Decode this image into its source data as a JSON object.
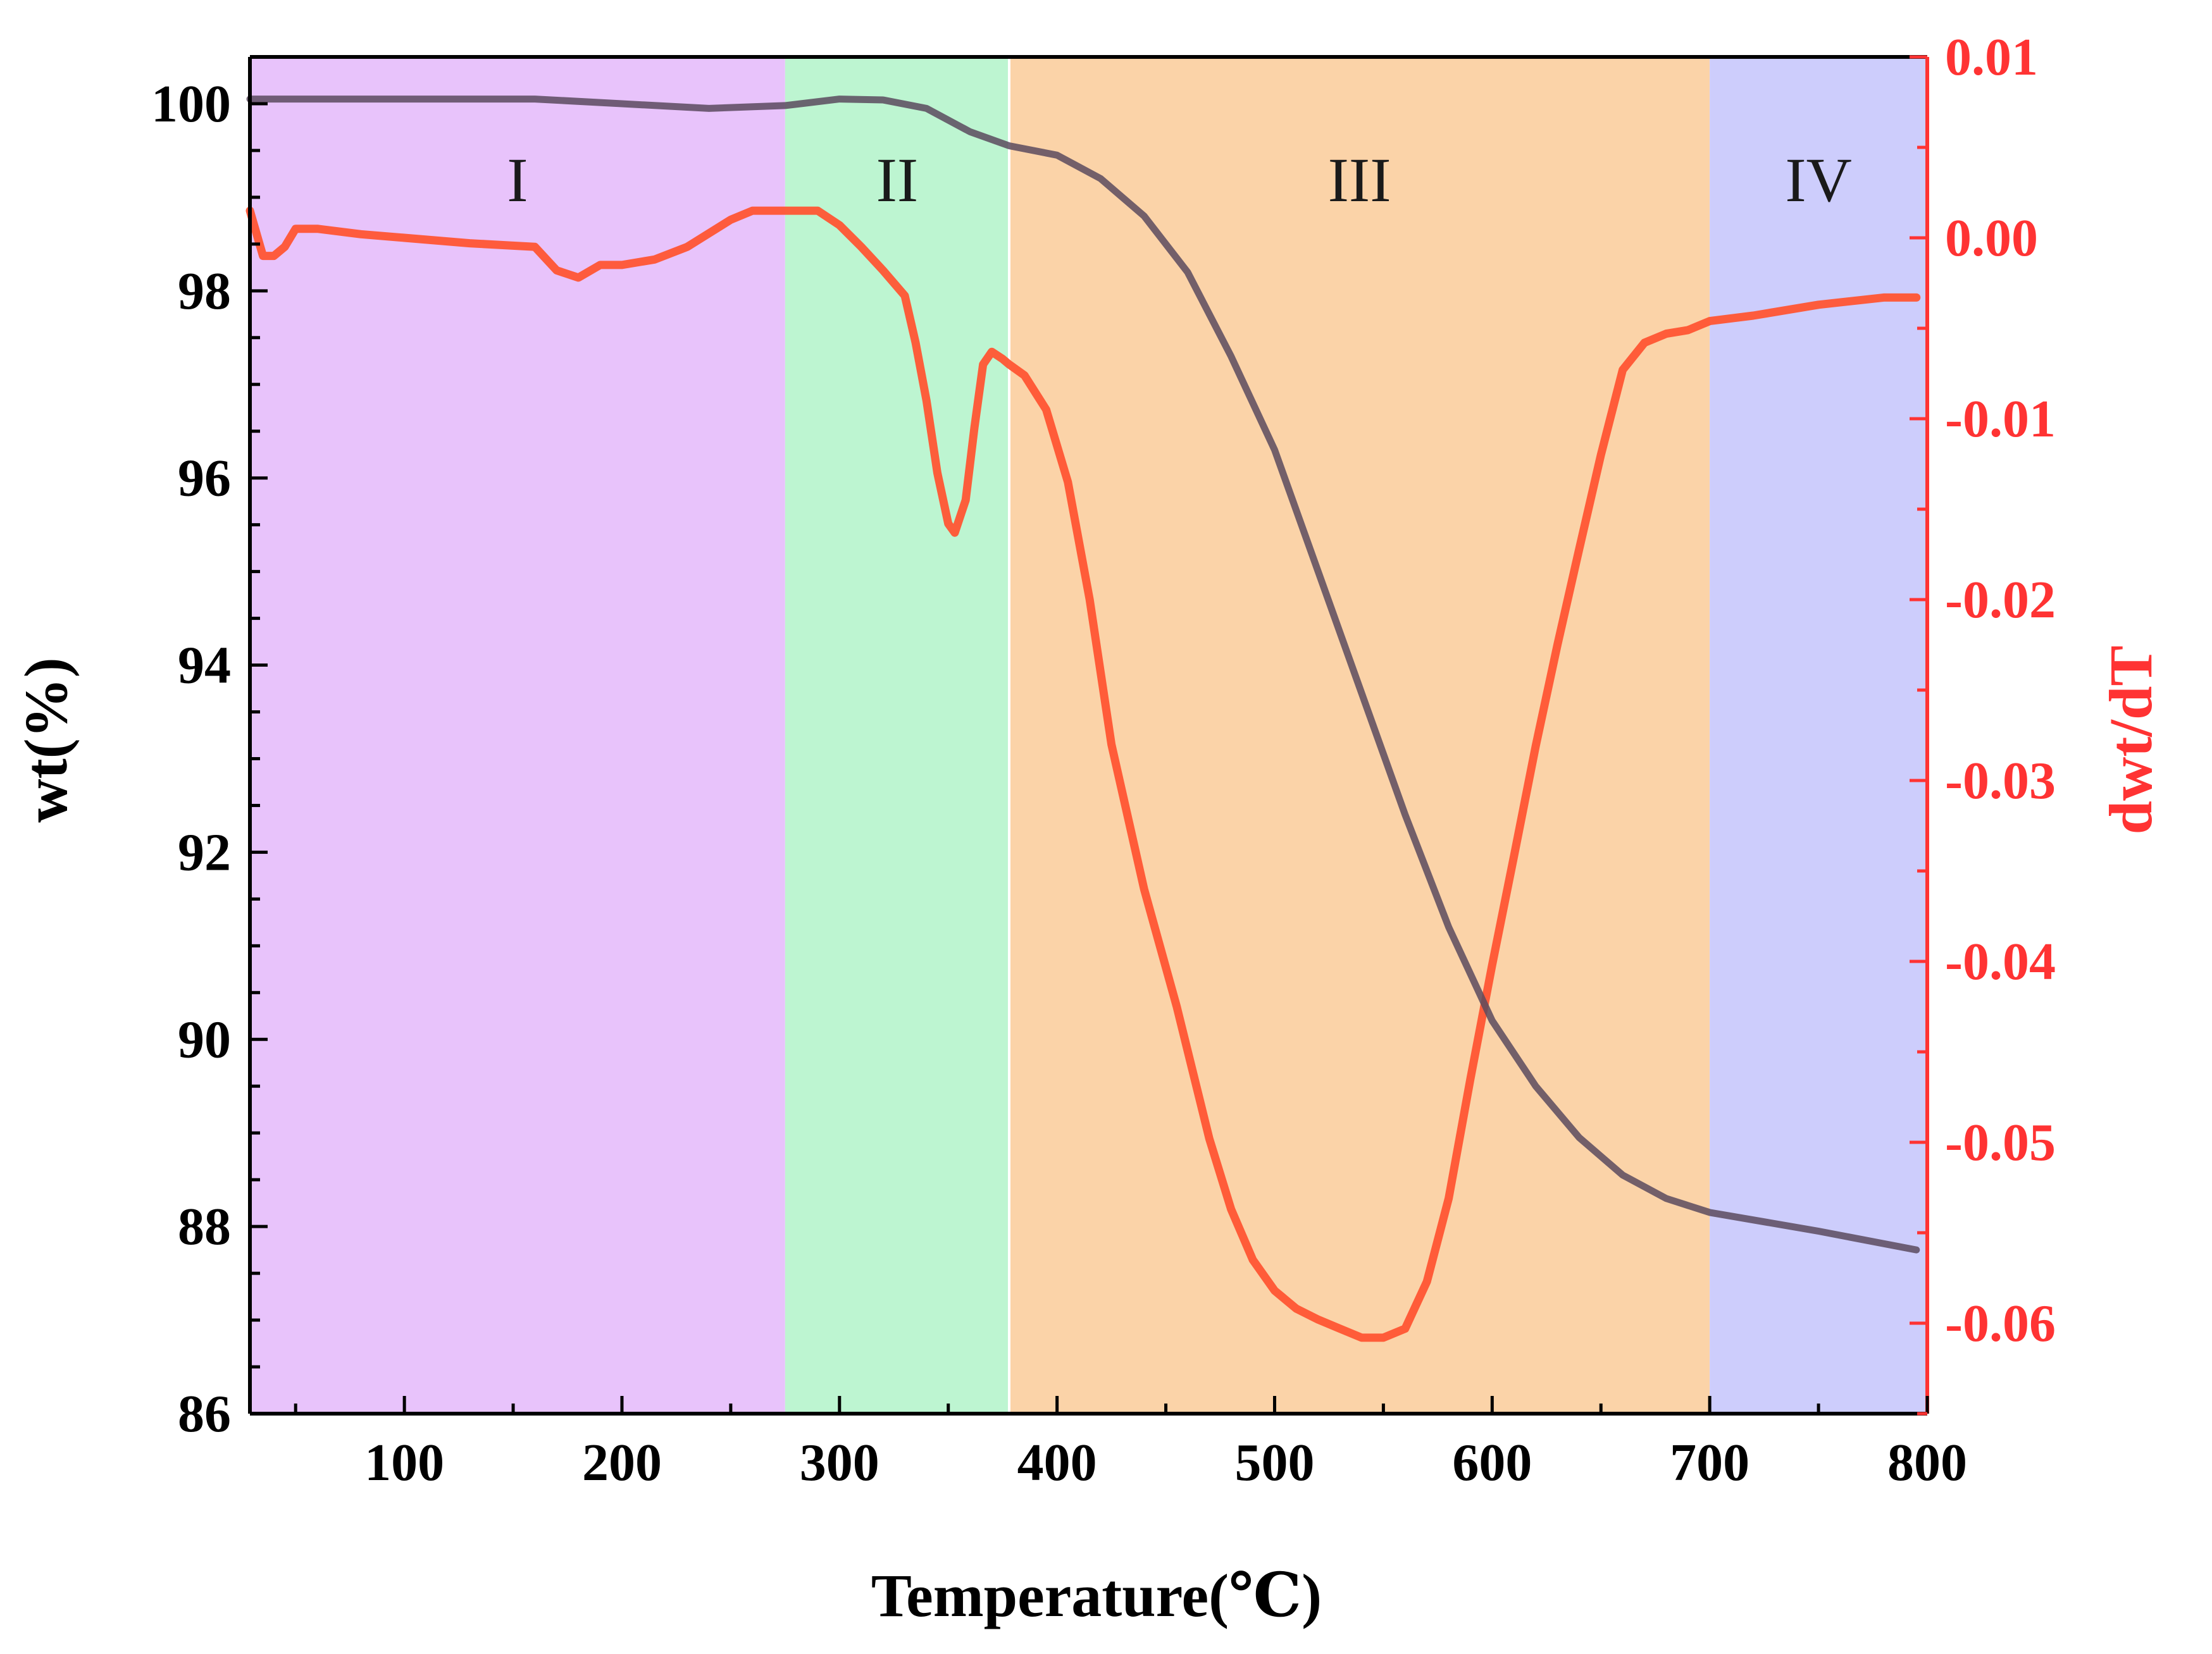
{
  "chart_data": {
    "type": "line",
    "title": "",
    "xlabel": "Temperature(℃)",
    "ylabel_left": "wt(%)",
    "ylabel_right": "dwt/dT",
    "xlim": [
      29,
      800
    ],
    "ylim_left": [
      86,
      100.5
    ],
    "ylim_right": [
      -0.065,
      0.01
    ],
    "xticks": [
      "100",
      "200",
      "300",
      "400",
      "500",
      "600",
      "700",
      "800"
    ],
    "yticks_left": [
      "86",
      "88",
      "90",
      "92",
      "94",
      "96",
      "98",
      "100"
    ],
    "yticks_right": [
      "0.01",
      "0.00",
      "-0.01",
      "-0.02",
      "-0.03",
      "-0.04",
      "-0.05",
      "-0.06"
    ],
    "colors": {
      "left_axis": "#000000",
      "right_axis": "#ff3333",
      "tg_curve": "#5a4a5e",
      "dtg_curve": "#ff5533"
    },
    "regions": [
      {
        "label": "I",
        "x0": 29,
        "x1": 275,
        "color": "#e8c3fb"
      },
      {
        "label": "II",
        "x0": 275,
        "x1": 378,
        "color": "#bdf5d1"
      },
      {
        "label": "III",
        "x0": 378,
        "x1": 700,
        "color": "#fbd3a8"
      },
      {
        "label": "IV",
        "x0": 700,
        "x1": 800,
        "color": "#cdcdfc"
      }
    ],
    "series": [
      {
        "name": "wt(%)",
        "axis": "left",
        "x": [
          29,
          100,
          160,
          200,
          240,
          275,
          300,
          320,
          340,
          360,
          378,
          400,
          420,
          440,
          460,
          480,
          500,
          520,
          540,
          560,
          580,
          600,
          620,
          640,
          660,
          680,
          700,
          750,
          795
        ],
        "y": [
          100.05,
          100.05,
          100.05,
          100.0,
          99.95,
          99.98,
          100.05,
          100.04,
          99.95,
          99.7,
          99.55,
          99.45,
          99.2,
          98.8,
          98.2,
          97.3,
          96.3,
          95.0,
          93.7,
          92.4,
          91.2,
          90.2,
          89.5,
          88.95,
          88.55,
          88.3,
          88.15,
          87.95,
          87.75
        ]
      },
      {
        "name": "dwt/dT",
        "axis": "right",
        "x": [
          29,
          35,
          40,
          45,
          50,
          60,
          80,
          100,
          130,
          160,
          170,
          180,
          190,
          200,
          215,
          230,
          250,
          260,
          275,
          290,
          300,
          310,
          320,
          330,
          335,
          340,
          345,
          350,
          353,
          358,
          362,
          366,
          370,
          375,
          378,
          385,
          395,
          405,
          415,
          425,
          440,
          455,
          470,
          480,
          490,
          500,
          510,
          520,
          530,
          540,
          550,
          560,
          570,
          580,
          590,
          600,
          610,
          620,
          630,
          640,
          650,
          660,
          670,
          680,
          690,
          700,
          720,
          750,
          780,
          795
        ],
        "y": [
          0.0015,
          -0.001,
          -0.001,
          -0.0005,
          0.0005,
          0.0005,
          0.0002,
          0.0,
          -0.0003,
          -0.0005,
          -0.0018,
          -0.0022,
          -0.0015,
          -0.0015,
          -0.0012,
          -0.0005,
          0.001,
          0.0015,
          0.0015,
          0.0015,
          0.0007,
          -0.0005,
          -0.0018,
          -0.0032,
          -0.0058,
          -0.009,
          -0.013,
          -0.0158,
          -0.0163,
          -0.0145,
          -0.0105,
          -0.007,
          -0.0063,
          -0.0067,
          -0.007,
          -0.0076,
          -0.0095,
          -0.0135,
          -0.02,
          -0.028,
          -0.036,
          -0.0425,
          -0.0498,
          -0.0537,
          -0.0565,
          -0.0582,
          -0.0592,
          -0.0598,
          -0.0603,
          -0.0608,
          -0.0608,
          -0.0603,
          -0.0577,
          -0.0531,
          -0.0465,
          -0.0402,
          -0.0342,
          -0.0281,
          -0.0225,
          -0.0172,
          -0.012,
          -0.0073,
          -0.0058,
          -0.0053,
          -0.0051,
          -0.0046,
          -0.0043,
          -0.0037,
          -0.0033,
          -0.0033
        ]
      }
    ]
  }
}
